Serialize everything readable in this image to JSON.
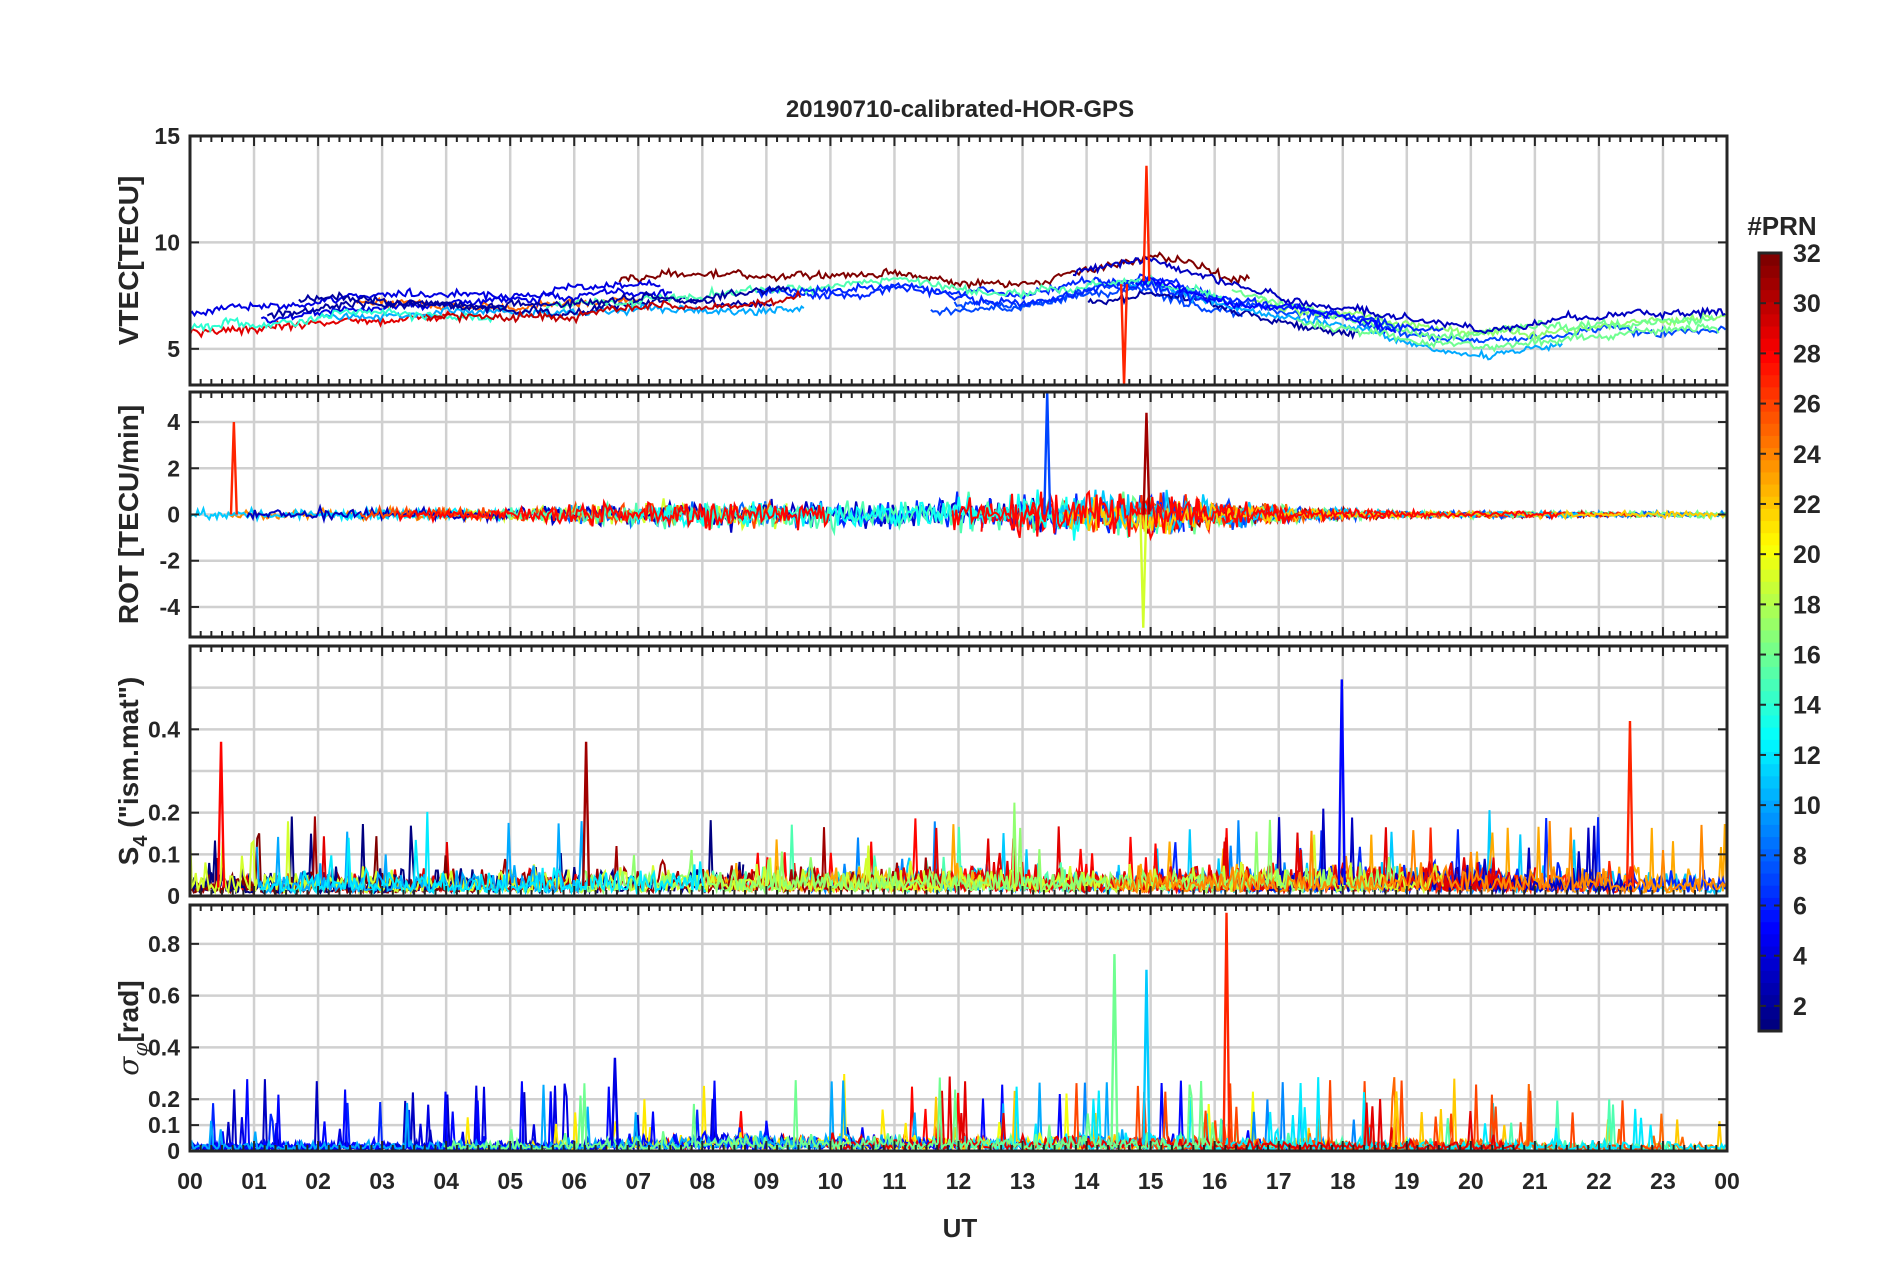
{
  "chart_data": {
    "type": "line",
    "title": "20190710-calibrated-HOR-GPS",
    "xlabel": "UT",
    "x_range_hours": [
      0,
      24
    ],
    "x_tick_labels": [
      "00",
      "01",
      "02",
      "03",
      "04",
      "05",
      "06",
      "07",
      "08",
      "09",
      "10",
      "11",
      "12",
      "13",
      "14",
      "15",
      "16",
      "17",
      "18",
      "19",
      "20",
      "21",
      "22",
      "23",
      "00"
    ],
    "grid": true,
    "colorbar": {
      "title": "#PRN",
      "range": [
        1,
        32
      ],
      "ticks": [
        2,
        4,
        6,
        8,
        10,
        12,
        14,
        16,
        18,
        20,
        22,
        24,
        26,
        28,
        30,
        32
      ],
      "colormap": "jet",
      "placement": "right"
    },
    "panels": [
      {
        "id": "vtec",
        "ylabel": "VTEC[TECU]",
        "ylim": [
          3.3,
          15
        ],
        "yticks": [
          5,
          10,
          15
        ],
        "gridlines": [
          5,
          10,
          15
        ],
        "kind": "level",
        "base_profile": [
          [
            0,
            6.2
          ],
          [
            2,
            6.8
          ],
          [
            3,
            7.0
          ],
          [
            5,
            6.9
          ],
          [
            7,
            7.6
          ],
          [
            9,
            7.6
          ],
          [
            10,
            7.6
          ],
          [
            11,
            7.8
          ],
          [
            12,
            7.4
          ],
          [
            13,
            7.3
          ],
          [
            14,
            7.8
          ],
          [
            15,
            8.2
          ],
          [
            16,
            7.5
          ],
          [
            17,
            6.9
          ],
          [
            18,
            6.4
          ],
          [
            19,
            5.8
          ],
          [
            20,
            5.5
          ],
          [
            21,
            5.7
          ],
          [
            22,
            6.0
          ],
          [
            24,
            6.3
          ]
        ],
        "annotated_peaks": [
          {
            "x": 14.95,
            "y": 13.6,
            "prn": 27
          },
          {
            "x": 14.6,
            "y": 3.3,
            "prn": 27
          }
        ]
      },
      {
        "id": "rot",
        "ylabel": "ROT [TECU/min]",
        "ylim": [
          -5.3,
          5.3
        ],
        "yticks": [
          -4,
          -2,
          0,
          2,
          4
        ],
        "gridlines": [
          -4,
          -2,
          0,
          2,
          4
        ],
        "kind": "noise",
        "activity_profile": [
          [
            0,
            0.3
          ],
          [
            5,
            0.4
          ],
          [
            6.5,
            0.8
          ],
          [
            9,
            0.9
          ],
          [
            12,
            1.0
          ],
          [
            13.5,
            1.3
          ],
          [
            15,
            1.5
          ],
          [
            16,
            0.9
          ],
          [
            17.5,
            0.4
          ],
          [
            19,
            0.2
          ],
          [
            24,
            0.2
          ]
        ],
        "annotated_peaks": [
          {
            "x": 0.7,
            "y": 4.0,
            "prn": 27
          },
          {
            "x": 14.95,
            "y": 4.4,
            "prn": 31
          },
          {
            "x": 13.4,
            "y": 5.3,
            "prn": 7
          },
          {
            "x": 14.9,
            "y": -4.9,
            "prn": 19
          }
        ]
      },
      {
        "id": "s4",
        "ylabel_main": "S",
        "ylabel_sub": "4",
        "ylabel_rest": " (\"ism.mat\")",
        "ylim": [
          0,
          0.6
        ],
        "yticks": [
          0,
          0.1,
          0.2,
          0.4
        ],
        "gridlines": [
          0.1,
          0.2,
          0.3,
          0.4,
          0.5
        ],
        "kind": "spike",
        "activity_profile": [
          [
            0,
            0.05
          ],
          [
            6,
            0.06
          ],
          [
            12,
            0.07
          ],
          [
            15,
            0.06
          ],
          [
            20,
            0.07
          ],
          [
            24,
            0.05
          ]
        ],
        "annotated_peaks": [
          {
            "x": 18.0,
            "y": 0.52,
            "prn": 5
          },
          {
            "x": 22.5,
            "y": 0.42,
            "prn": 27
          },
          {
            "x": 0.5,
            "y": 0.37,
            "prn": 28
          },
          {
            "x": 6.2,
            "y": 0.37,
            "prn": 31
          }
        ]
      },
      {
        "id": "sigma_phi",
        "ylabel_main": "σ",
        "ylabel_sub": "φ",
        "ylabel_rest": "[rad]",
        "ylim": [
          0,
          0.95
        ],
        "yticks": [
          0,
          0.1,
          0.2,
          0.4,
          0.6,
          0.8
        ],
        "gridlines": [
          0.1,
          0.2,
          0.4,
          0.6,
          0.8
        ],
        "kind": "spike",
        "activity_profile": [
          [
            0,
            0.03
          ],
          [
            6,
            0.035
          ],
          [
            6.5,
            0.05
          ],
          [
            9,
            0.06
          ],
          [
            13,
            0.05
          ],
          [
            15,
            0.06
          ],
          [
            16,
            0.04
          ],
          [
            24,
            0.03
          ]
        ],
        "annotated_peaks": [
          {
            "x": 16.2,
            "y": 0.92,
            "prn": 27
          },
          {
            "x": 14.45,
            "y": 0.76,
            "prn": 16
          },
          {
            "x": 14.95,
            "y": 0.7,
            "prn": 11
          },
          {
            "x": 6.65,
            "y": 0.36,
            "prn": 4
          },
          {
            "x": 18.85,
            "y": 0.23,
            "prn": 22
          }
        ]
      }
    ]
  }
}
